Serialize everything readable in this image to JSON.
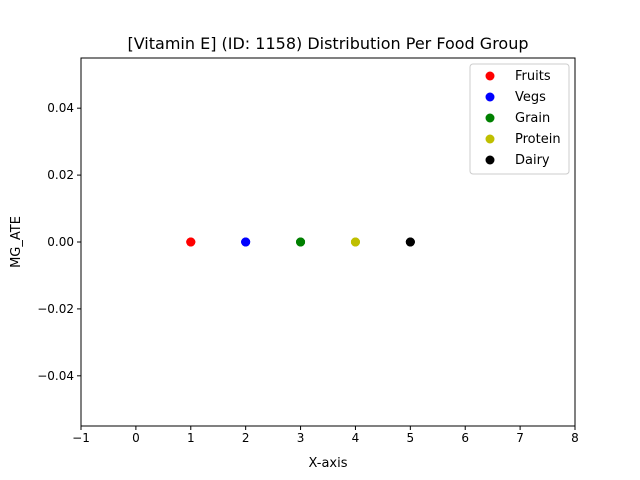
{
  "chart_data": {
    "type": "scatter",
    "title": "[Vitamin E] (ID: 1158) Distribution Per Food Group",
    "xlabel": "X-axis",
    "ylabel": "MG_ATE",
    "xlim": [
      -1,
      8
    ],
    "ylim": [
      -0.055,
      0.055
    ],
    "xticks": [
      -1,
      0,
      1,
      2,
      3,
      4,
      5,
      6,
      7,
      8
    ],
    "xtick_labels": [
      "−1",
      "0",
      "1",
      "2",
      "3",
      "4",
      "5",
      "6",
      "7",
      "8"
    ],
    "yticks": [
      -0.04,
      -0.02,
      0.0,
      0.02,
      0.04
    ],
    "ytick_labels": [
      "−0.04",
      "−0.02",
      "0.00",
      "0.02",
      "0.04"
    ],
    "grid": false,
    "legend_position": "top-right",
    "series": [
      {
        "name": "Fruits",
        "color": "#ff0000",
        "x": [
          1,
          1,
          1
        ],
        "y": [
          0,
          0,
          0
        ]
      },
      {
        "name": "Vegs",
        "color": "#0000ff",
        "x": [
          2,
          2,
          2
        ],
        "y": [
          0,
          0,
          0
        ]
      },
      {
        "name": "Grain",
        "color": "#008000",
        "x": [
          3,
          3,
          3
        ],
        "y": [
          0,
          0,
          0
        ]
      },
      {
        "name": "Protein",
        "color": "#bfbf00",
        "x": [
          4,
          4,
          4
        ],
        "y": [
          0,
          0,
          0
        ]
      },
      {
        "name": "Dairy",
        "color": "#000000",
        "x": [
          5,
          5,
          5
        ],
        "y": [
          0,
          0,
          0
        ]
      }
    ]
  }
}
